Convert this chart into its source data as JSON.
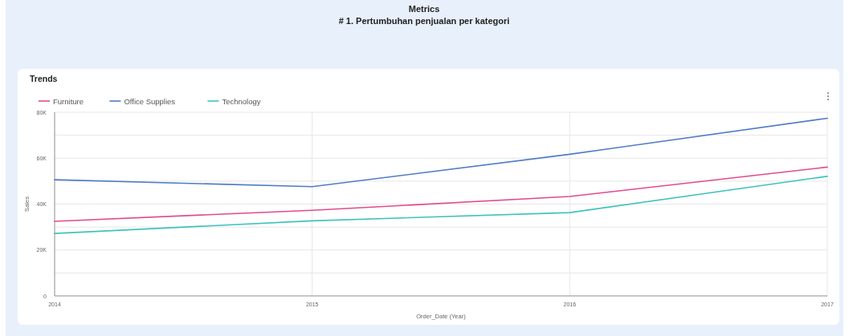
{
  "chart_data": {
    "type": "line",
    "title": "Metrics",
    "subtitle": "# 1. Pertumbuhan penjualan per kategori",
    "annotations": [
      "Trends"
    ],
    "xlabel": "Order_Date (Year)",
    "ylabel": "Sales",
    "categories": [
      "2014",
      "2015",
      "2016",
      "2017"
    ],
    "series": [
      {
        "name": "Furniture",
        "color": "#e24a8a",
        "values": [
          32500,
          37300,
          43300,
          56100
        ]
      },
      {
        "name": "Office Supplies",
        "color": "#4f7cc6",
        "values": [
          50600,
          47600,
          61700,
          77400
        ]
      },
      {
        "name": "Technology",
        "color": "#3fc2bd",
        "values": [
          27200,
          32700,
          36300,
          52100
        ]
      }
    ],
    "ylim": [
      0,
      80000
    ],
    "yticks": [
      0,
      {
        "value": 10000,
        "label": null
      },
      {
        "value": 20000,
        "label": "20K"
      },
      {
        "value": 30000,
        "label": null
      },
      {
        "value": 40000,
        "label": "40K"
      },
      {
        "value": 50000,
        "label": null
      },
      {
        "value": 60000,
        "label": "60K"
      },
      {
        "value": 70000,
        "label": null
      },
      {
        "value": 80000,
        "label": "80K"
      }
    ],
    "grid": true,
    "legend": "top left"
  }
}
